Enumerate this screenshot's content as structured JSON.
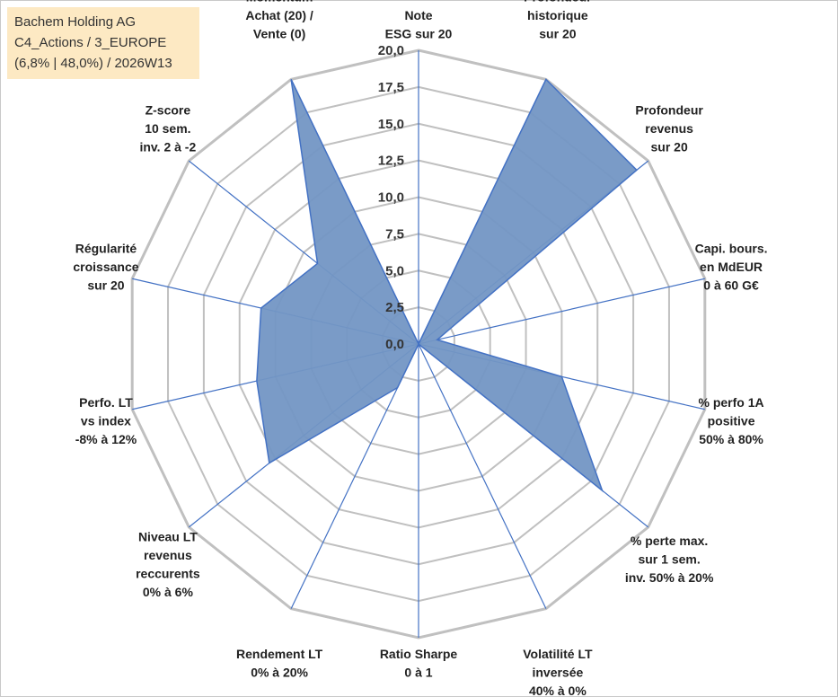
{
  "info": {
    "line1": "Bachem Holding AG",
    "line2": "C4_Actions / 3_EUROPE",
    "line3": "(6,8% | 48,0%) / 2026W13"
  },
  "chart_data": {
    "type": "radar",
    "rmin": 0,
    "rmax": 20,
    "ticks": [
      "0,0",
      "2,5",
      "5,0",
      "7,5",
      "10,0",
      "12,5",
      "15,0",
      "17,5",
      "20,0"
    ],
    "grid": true,
    "colors": {
      "fill": "#7396c4",
      "stroke": "#4472c4",
      "grid": "#c0c0c0",
      "axis": "#4472c4"
    },
    "categories": [
      [
        "Note",
        "ESG sur 20"
      ],
      [
        "Profondeur",
        "historique",
        "sur 20"
      ],
      [
        "Profondeur",
        "revenus",
        "sur 20"
      ],
      [
        "Capi. bours.",
        "en MdEUR",
        "0 à 60 G€"
      ],
      [
        "% perfo 1A",
        "positive",
        "50% à 80%"
      ],
      [
        "% perte max.",
        "sur 1 sem.",
        "inv. 50% à 20%"
      ],
      [
        "Volatilité LT",
        "inversée",
        "40% à 0%"
      ],
      [
        "Ratio Sharpe",
        "0 à 1"
      ],
      [
        "Rendement LT",
        "0% à 20%"
      ],
      [
        "Niveau LT",
        "revenus",
        "reccurents",
        "0% à 6%"
      ],
      [
        "Perfo. LT",
        "vs index",
        "-8% à 12%"
      ],
      [
        "Régularité",
        "croissance",
        "sur 20"
      ],
      [
        "Z-score",
        "10 sem.",
        "inv. 2 à -2"
      ],
      [
        "Momentum",
        "Achat (20) /",
        "Vente (0)"
      ]
    ],
    "series": [
      {
        "values": [
          0,
          20,
          19,
          1.3,
          10,
          16,
          0,
          0,
          3.3,
          13,
          11.3,
          11,
          8.8,
          20
        ]
      }
    ]
  }
}
